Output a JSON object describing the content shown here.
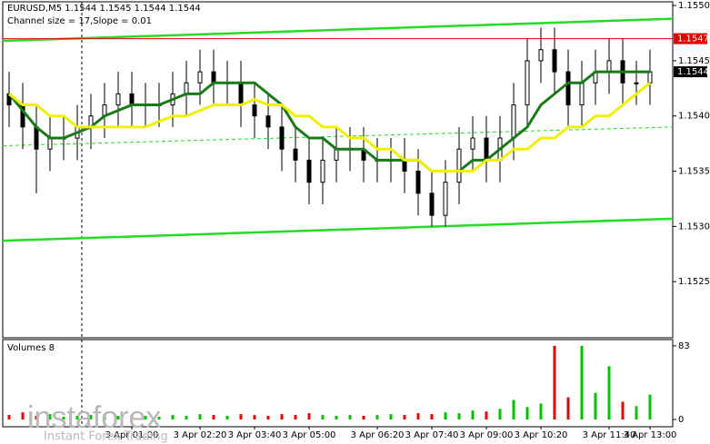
{
  "chart_data": {
    "type": "candlestick",
    "title": "EURUSD,M5  1.1544 1.1545 1.1544 1.1544",
    "subtitle": "Channel size = 17,Slope = 0.01",
    "color": "#000000",
    "categories": [
      null,
      null,
      null,
      null,
      null,
      null,
      null,
      null,
      null,
      "3 Apr 01:00",
      null,
      null,
      null,
      null,
      "3 Apr 02:20",
      null,
      null,
      null,
      "3 Apr 03:40",
      null,
      null,
      null,
      "3 Apr 05:00",
      null,
      null,
      null,
      null,
      "3 Apr 06:20",
      null,
      null,
      null,
      "3 Apr 07:40",
      null,
      null,
      null,
      "3 Apr 09:00",
      null,
      null,
      null,
      "3 Apr 10:20",
      null,
      null,
      null,
      null,
      "3 Apr 11:40",
      null,
      null,
      "3 Apr 13:00"
    ],
    "open": [
      1.1542,
      1.1541,
      1.1539,
      1.1537,
      1.1538,
      1.1538,
      1.1539,
      1.154,
      1.1541,
      1.1542,
      1.1541,
      1.1541,
      1.1541,
      1.1542,
      1.1543,
      1.1544,
      1.1543,
      1.1543,
      1.1541,
      1.154,
      1.1539,
      1.1537,
      1.1536,
      1.1534,
      1.1536,
      1.1537,
      1.1537,
      1.1536,
      1.1536,
      1.1536,
      1.1535,
      1.1533,
      1.1531,
      1.1534,
      1.1537,
      1.1538,
      1.1536,
      1.1538,
      1.1541,
      1.1545,
      1.1546,
      1.1544,
      1.1541,
      1.1543,
      1.1544,
      1.1545,
      1.1543,
      1.1543
    ],
    "high": [
      1.1544,
      1.1543,
      1.1541,
      1.154,
      1.154,
      1.1541,
      1.1542,
      1.1543,
      1.1544,
      1.1544,
      1.1543,
      1.1543,
      1.1544,
      1.1545,
      1.1546,
      1.1546,
      1.1545,
      1.1545,
      1.1543,
      1.1542,
      1.1541,
      1.1539,
      1.1538,
      1.1538,
      1.1539,
      1.1539,
      1.1539,
      1.1538,
      1.1538,
      1.1538,
      1.1537,
      1.1535,
      1.1536,
      1.1539,
      1.154,
      1.154,
      1.154,
      1.1543,
      1.1547,
      1.1548,
      1.1548,
      1.1546,
      1.1545,
      1.1546,
      1.1547,
      1.1547,
      1.1545,
      1.1546
    ],
    "low": [
      1.1539,
      1.1537,
      1.1533,
      1.1535,
      1.1536,
      1.1536,
      1.1537,
      1.1538,
      1.1539,
      1.1539,
      1.1539,
      1.1539,
      1.1539,
      1.154,
      1.1541,
      1.1541,
      1.1541,
      1.1539,
      1.1538,
      1.1537,
      1.1535,
      1.1534,
      1.1532,
      1.1532,
      1.1534,
      1.1535,
      1.1534,
      1.1534,
      1.1534,
      1.1533,
      1.1531,
      1.153,
      1.153,
      1.1532,
      1.1535,
      1.1534,
      1.1534,
      1.1536,
      1.1539,
      1.1543,
      1.1542,
      1.1539,
      1.1539,
      1.1541,
      1.1542,
      1.1541,
      1.1541,
      1.1541
    ],
    "close": [
      1.1541,
      1.1539,
      1.1537,
      1.1538,
      1.1538,
      1.1539,
      1.154,
      1.1541,
      1.1542,
      1.1541,
      1.1541,
      1.1541,
      1.1542,
      1.1543,
      1.1544,
      1.1543,
      1.1543,
      1.1541,
      1.154,
      1.1539,
      1.1537,
      1.1536,
      1.1534,
      1.1536,
      1.1537,
      1.1537,
      1.1536,
      1.1536,
      1.1536,
      1.1535,
      1.1533,
      1.1531,
      1.1534,
      1.1537,
      1.1538,
      1.1536,
      1.1538,
      1.1541,
      1.1545,
      1.1546,
      1.1544,
      1.1541,
      1.1543,
      1.1544,
      1.1545,
      1.1543,
      1.1543,
      1.1544
    ],
    "series": [
      {
        "color": "#1a7a1a",
        "values": [
          1.1542,
          1.15405,
          1.1539,
          1.1538,
          1.1538,
          1.15385,
          1.1539,
          1.154,
          1.15405,
          1.1541,
          1.1541,
          1.1541,
          1.15415,
          1.1542,
          1.1542,
          1.1543,
          1.1543,
          1.1543,
          1.1543,
          1.1542,
          1.1541,
          1.1539,
          1.1538,
          1.1538,
          1.1537,
          1.1537,
          1.1537,
          1.1536,
          1.1536,
          1.1536,
          1.1536,
          1.1535,
          1.1535,
          1.1535,
          1.1536,
          1.1536,
          1.1537,
          1.1538,
          1.1539,
          1.1541,
          1.1542,
          1.1543,
          1.1543,
          1.1544,
          1.1544,
          1.1544,
          1.1544,
          1.1544
        ]
      },
      {
        "color": "#f0f000",
        "values": [
          1.1542,
          1.1541,
          1.1541,
          1.154,
          1.154,
          1.1539,
          1.1539,
          1.1539,
          1.1539,
          1.1539,
          1.1539,
          1.15395,
          1.154,
          1.154,
          1.15405,
          1.1541,
          1.1541,
          1.1541,
          1.15415,
          1.1541,
          1.1541,
          1.154,
          1.154,
          1.1539,
          1.1539,
          1.1538,
          1.1538,
          1.1537,
          1.1537,
          1.1536,
          1.1536,
          1.1535,
          1.1535,
          1.1535,
          1.1535,
          1.1536,
          1.1536,
          1.1537,
          1.1537,
          1.1538,
          1.1538,
          1.1539,
          1.1539,
          1.154,
          1.154,
          1.1541,
          1.1542,
          1.1543
        ]
      }
    ],
    "channel_color": "#22dd22",
    "channel_upper": [
      1.15468,
      1.15488
    ],
    "channel_middle": [
      1.15373,
      1.1539
    ],
    "channel_lower": [
      1.15287,
      1.15307
    ],
    "level_line": 1.1547,
    "level_color": "#e00000",
    "current_price": 1.1544,
    "ylim": [
      1.152,
      1.15505
    ],
    "yticks": [
      {
        "value": 1.155,
        "label": "1.1550"
      },
      1.1545,
      {
        "value": 1.154,
        "label": "1.1540"
      },
      1.1535,
      {
        "value": 1.153,
        "label": "1.1530"
      },
      1.1525
    ],
    "volume": {
      "title": "Volumes 8",
      "up_color": "#00c000",
      "down_color": "#e00000",
      "values": [
        5,
        8,
        4,
        6,
        3,
        4,
        5,
        6,
        4,
        5,
        4,
        3,
        5,
        4,
        6,
        5,
        4,
        6,
        5,
        4,
        6,
        5,
        7,
        5,
        4,
        5,
        4,
        5,
        6,
        5,
        7,
        6,
        8,
        7,
        10,
        9,
        12,
        22,
        14,
        18,
        83,
        25,
        83,
        30,
        60,
        20,
        15,
        28
      ],
      "ylim": [
        0,
        88
      ],
      "yticks": [
        0,
        83
      ]
    }
  },
  "watermark": {
    "brand": "instaforex",
    "tagline": "Instant Forex Trading"
  }
}
